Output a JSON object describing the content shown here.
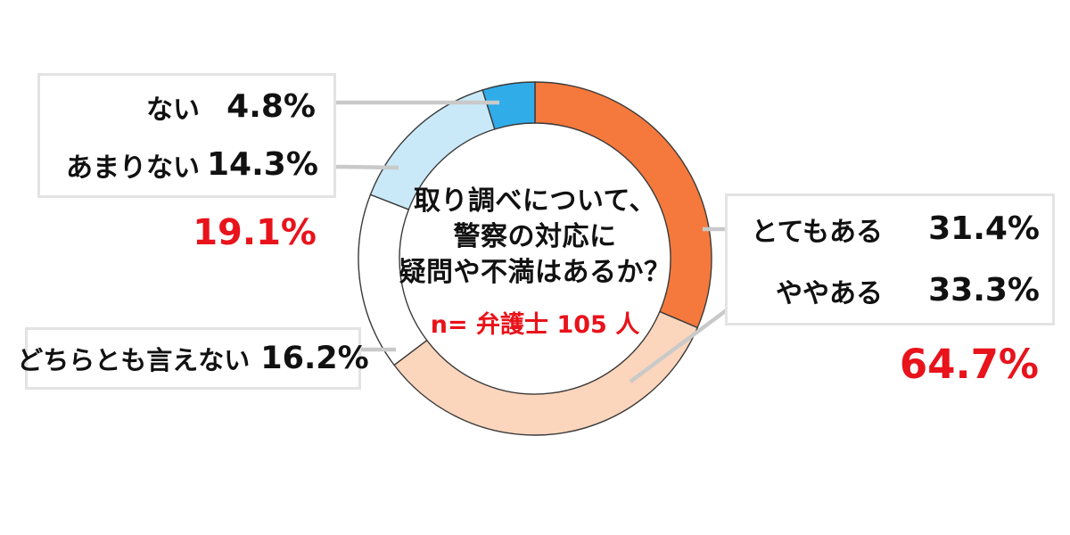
{
  "chart_data": {
    "type": "pie",
    "variant": "donut",
    "title": "取り調べについて、警察の対応に疑問や不満はあるか？",
    "title_lines": [
      "取り調べについて、",
      "警察の対応に",
      "疑問や不満はあるか？"
    ],
    "sample_note": "n= 弁護士 105 人",
    "start_angle_deg": 0,
    "direction": "clockwise",
    "legend_position": "callout-boxes",
    "segments": [
      {
        "key": "totemo-aru",
        "label": "とてもある",
        "value": 31.4,
        "display": "31.4%",
        "color": "#F5793C"
      },
      {
        "key": "yaya-aru",
        "label": "ややある",
        "value": 33.3,
        "display": "33.3%",
        "color": "#FBD5BC"
      },
      {
        "key": "dochira",
        "label": "どちらとも言えない",
        "value": 16.2,
        "display": "16.2%",
        "color": "#FFFFFF"
      },
      {
        "key": "amari-nai",
        "label": "あまりない",
        "value": 14.3,
        "display": "14.3%",
        "color": "#C9E9F8"
      },
      {
        "key": "nai",
        "label": "ない",
        "value": 4.8,
        "display": "4.8%",
        "color": "#30ADE9"
      }
    ],
    "subtotals": {
      "none_total": "19.1%",
      "have_total": "64.7%"
    },
    "colors": {
      "subtotal_red": "#E8131B",
      "segment_outline": "#3A3A3A",
      "leader_line": "#C9C9C9",
      "box_border": "#E3E3E3",
      "text": "#111111"
    }
  }
}
